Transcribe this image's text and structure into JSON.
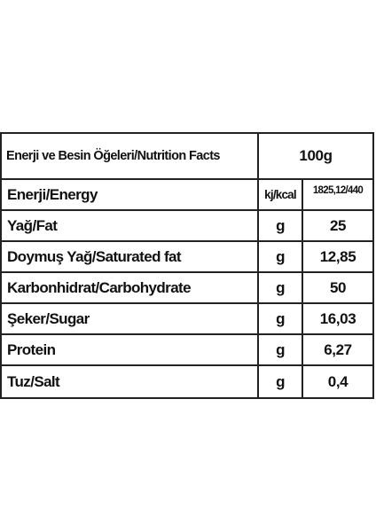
{
  "table": {
    "header": {
      "title": "Enerji ve Besin Öğeleri/Nutrition Facts",
      "amount": "100g"
    },
    "rows": [
      {
        "name": "Enerji/Energy",
        "unit": "kj/kcal",
        "value": "1825,12/440"
      },
      {
        "name": "Yağ/Fat",
        "unit": "g",
        "value": "25"
      },
      {
        "name": "Doymuş Yağ/Saturated fat",
        "unit": "g",
        "value": "12,85"
      },
      {
        "name": "Karbonhidrat/Carbohydrate",
        "unit": "g",
        "value": "50"
      },
      {
        "name": "Şeker/Sugar",
        "unit": "g",
        "value": "16,03"
      },
      {
        "name": "Protein",
        "unit": "g",
        "value": "6,27"
      },
      {
        "name": "Tuz/Salt",
        "unit": "g",
        "value": "0,4"
      }
    ]
  }
}
